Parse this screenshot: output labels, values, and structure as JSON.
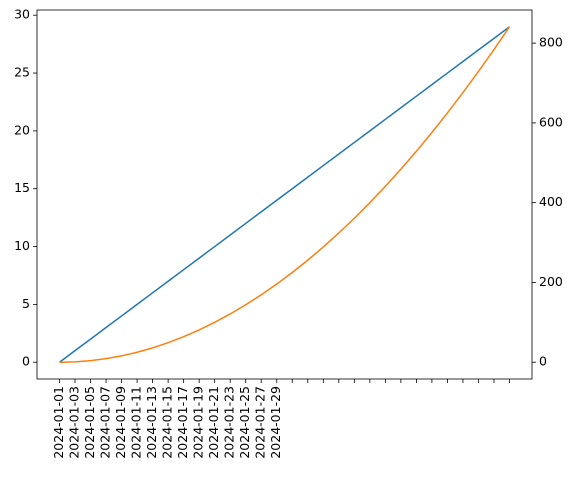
{
  "chart_data": {
    "type": "line",
    "categories": [
      "2024-01-01",
      "2024-01-03",
      "2024-01-05",
      "2024-01-07",
      "2024-01-09",
      "2024-01-11",
      "2024-01-13",
      "2024-01-15",
      "2024-01-17",
      "2024-01-19",
      "2024-01-21",
      "2024-01-23",
      "2024-01-25",
      "2024-01-27",
      "2024-01-29",
      null,
      null,
      null,
      null,
      null,
      null,
      null,
      null,
      null,
      null,
      null,
      null,
      null,
      null,
      null
    ],
    "series": [
      {
        "color": "#1f77b4",
        "values": [
          0,
          1,
          2,
          3,
          4,
          5,
          6,
          7,
          8,
          9,
          10,
          11,
          12,
          13,
          14,
          15,
          16,
          17,
          18,
          19,
          20,
          21,
          22,
          23,
          24,
          25,
          26,
          27,
          28,
          29
        ]
      },
      {
        "color": "#ff7f0e",
        "axis": "y2",
        "values": [
          0,
          1,
          4,
          9,
          16,
          25,
          36,
          49,
          64,
          81,
          100,
          121,
          144,
          169,
          196,
          225,
          256,
          289,
          324,
          361,
          400,
          441,
          484,
          529,
          576,
          625,
          676,
          729,
          784,
          841
        ]
      }
    ],
    "xlim": [
      -1.45,
      30.45
    ],
    "ylim": [
      -1.45,
      30.45
    ],
    "yticks": [
      0,
      5,
      10,
      15,
      20,
      25,
      30
    ],
    "y2lim": [
      -42.05,
      883.05
    ],
    "y2ticks": [
      0,
      200,
      400,
      600,
      800
    ]
  }
}
